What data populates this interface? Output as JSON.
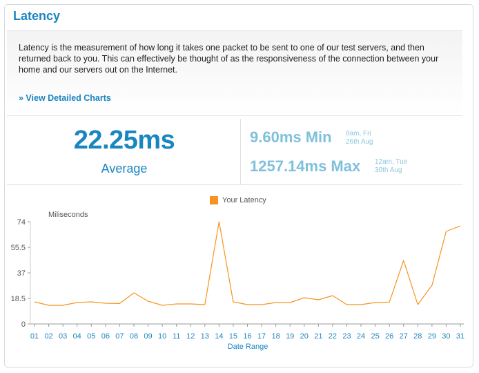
{
  "title": "Latency",
  "description": "Latency is the measurement of how long it takes one packet to be sent to one of our test servers, and then returned back to you. This can effectively be thought of as the responsiveness of the connection between your home and our servers out on the Internet.",
  "detail_link": "» View Detailed Charts",
  "average": {
    "value": "22.25ms",
    "label": "Average"
  },
  "min": {
    "value": "9.60ms Min",
    "time_line1": "8am, Fri",
    "time_line2": "26th Aug"
  },
  "max": {
    "value": "1257.14ms Max",
    "time_line1": "12am, Tue",
    "time_line2": "30th Aug"
  },
  "colors": {
    "accent": "#1a86c0",
    "series": "#f7931e",
    "stat": "#7fc0db"
  },
  "chart_data": {
    "type": "line",
    "title": "",
    "legend": "Your Latency",
    "legend_position": "top-center",
    "ylabel": "Miliseconds",
    "xlabel": "Date Range",
    "ylim": [
      0,
      74
    ],
    "yticks": [
      "74",
      "55.5",
      "37",
      "18.5",
      "0"
    ],
    "ytick_values": [
      74,
      55.5,
      37,
      18.5,
      0
    ],
    "categories": [
      "01",
      "02",
      "03",
      "04",
      "05",
      "06",
      "07",
      "08",
      "09",
      "10",
      "11",
      "12",
      "13",
      "14",
      "15",
      "16",
      "17",
      "18",
      "19",
      "20",
      "21",
      "22",
      "23",
      "24",
      "25",
      "26",
      "27",
      "28",
      "29",
      "30",
      "31"
    ],
    "series": [
      {
        "name": "Your Latency",
        "values": [
          16,
          13.5,
          13.5,
          15.5,
          16,
          15,
          14.8,
          22.5,
          16.5,
          13.5,
          14.5,
          14.5,
          14,
          74,
          16,
          14,
          14,
          15.5,
          15.5,
          19,
          17.5,
          20.5,
          14,
          14,
          15.5,
          15.8,
          46,
          14,
          28,
          67,
          71
        ]
      }
    ],
    "grid": false
  }
}
